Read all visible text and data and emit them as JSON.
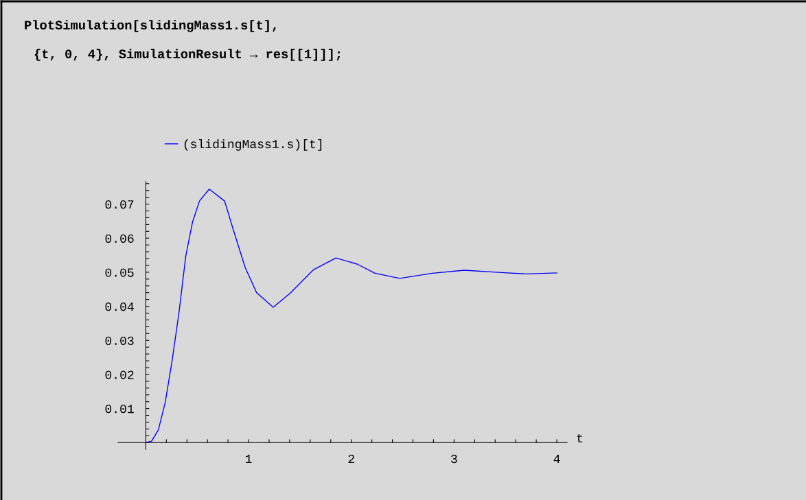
{
  "chart_data": {
    "type": "line",
    "annotations": [
      "PlotSimulation[slidingMass1.s[t],",
      "{t, 0, 4}, SimulationResult → res[[1]]];"
    ],
    "xlabel": "t",
    "legend": "top left",
    "series": [
      {
        "name": "(slidingMass1.s)[t]",
        "color": "#0000ff",
        "x": [
          0,
          0.055,
          0.122,
          0.189,
          0.255,
          0.322,
          0.389,
          0.455,
          0.522,
          0.617,
          0.767,
          0.855,
          0.967,
          1.078,
          1.24,
          1.41,
          1.63,
          1.85,
          2.055,
          2.23,
          2.47,
          2.79,
          3.1,
          3.46,
          3.7,
          4.0
        ],
        "values": [
          0,
          0.0004,
          0.0037,
          0.0118,
          0.0239,
          0.038,
          0.0548,
          0.0648,
          0.0709,
          0.0744,
          0.0709,
          0.0621,
          0.0514,
          0.044,
          0.0397,
          0.044,
          0.0507,
          0.0542,
          0.0524,
          0.0497,
          0.0482,
          0.0497,
          0.0506,
          0.0499,
          0.0495,
          0.0498
        ]
      }
    ],
    "xlim": [
      -0.27,
      4.1
    ],
    "ylim": [
      -0.002,
      0.0766
    ],
    "xticks": [
      {
        "value": 0.2,
        "label": null
      },
      {
        "value": 0.4,
        "label": null
      },
      {
        "value": 0.6,
        "label": null
      },
      {
        "value": 0.8,
        "label": null
      },
      1,
      {
        "value": 1.2,
        "label": null
      },
      {
        "value": 1.4,
        "label": null
      },
      {
        "value": 1.6,
        "label": null
      },
      {
        "value": 1.8,
        "label": null
      },
      2,
      {
        "value": 2.2,
        "label": null
      },
      {
        "value": 2.4,
        "label": null
      },
      {
        "value": 2.6,
        "label": null
      },
      {
        "value": 2.8,
        "label": null
      },
      3,
      {
        "value": 3.2,
        "label": null
      },
      {
        "value": 3.4,
        "label": null
      },
      {
        "value": 3.6,
        "label": null
      },
      {
        "value": 3.8,
        "label": null
      },
      4
    ],
    "yticks": [
      {
        "value": 0.002,
        "label": null
      },
      {
        "value": 0.004,
        "label": null
      },
      {
        "value": 0.006,
        "label": null
      },
      {
        "value": 0.008,
        "label": null
      },
      0.01,
      {
        "value": 0.012,
        "label": null
      },
      {
        "value": 0.014,
        "label": null
      },
      {
        "value": 0.016,
        "label": null
      },
      {
        "value": 0.018,
        "label": null
      },
      0.02,
      {
        "value": 0.022,
        "label": null
      },
      {
        "value": 0.024,
        "label": null
      },
      {
        "value": 0.026,
        "label": null
      },
      {
        "value": 0.028,
        "label": null
      },
      0.03,
      {
        "value": 0.032,
        "label": null
      },
      {
        "value": 0.034,
        "label": null
      },
      {
        "value": 0.036,
        "label": null
      },
      {
        "value": 0.038,
        "label": null
      },
      0.04,
      {
        "value": 0.042,
        "label": null
      },
      {
        "value": 0.044,
        "label": null
      },
      {
        "value": 0.046,
        "label": null
      },
      {
        "value": 0.048,
        "label": null
      },
      0.05,
      {
        "value": 0.052,
        "label": null
      },
      {
        "value": 0.054,
        "label": null
      },
      {
        "value": 0.056,
        "label": null
      },
      {
        "value": 0.058,
        "label": null
      },
      0.06,
      {
        "value": 0.062,
        "label": null
      },
      {
        "value": 0.064,
        "label": null
      },
      {
        "value": 0.066,
        "label": null
      },
      {
        "value": 0.068,
        "label": null
      },
      0.07,
      {
        "value": 0.072,
        "label": null
      },
      {
        "value": 0.074,
        "label": null
      },
      {
        "value": 0.076,
        "label": null
      }
    ],
    "grid": false,
    "marker": "none",
    "line_style": "solid"
  }
}
